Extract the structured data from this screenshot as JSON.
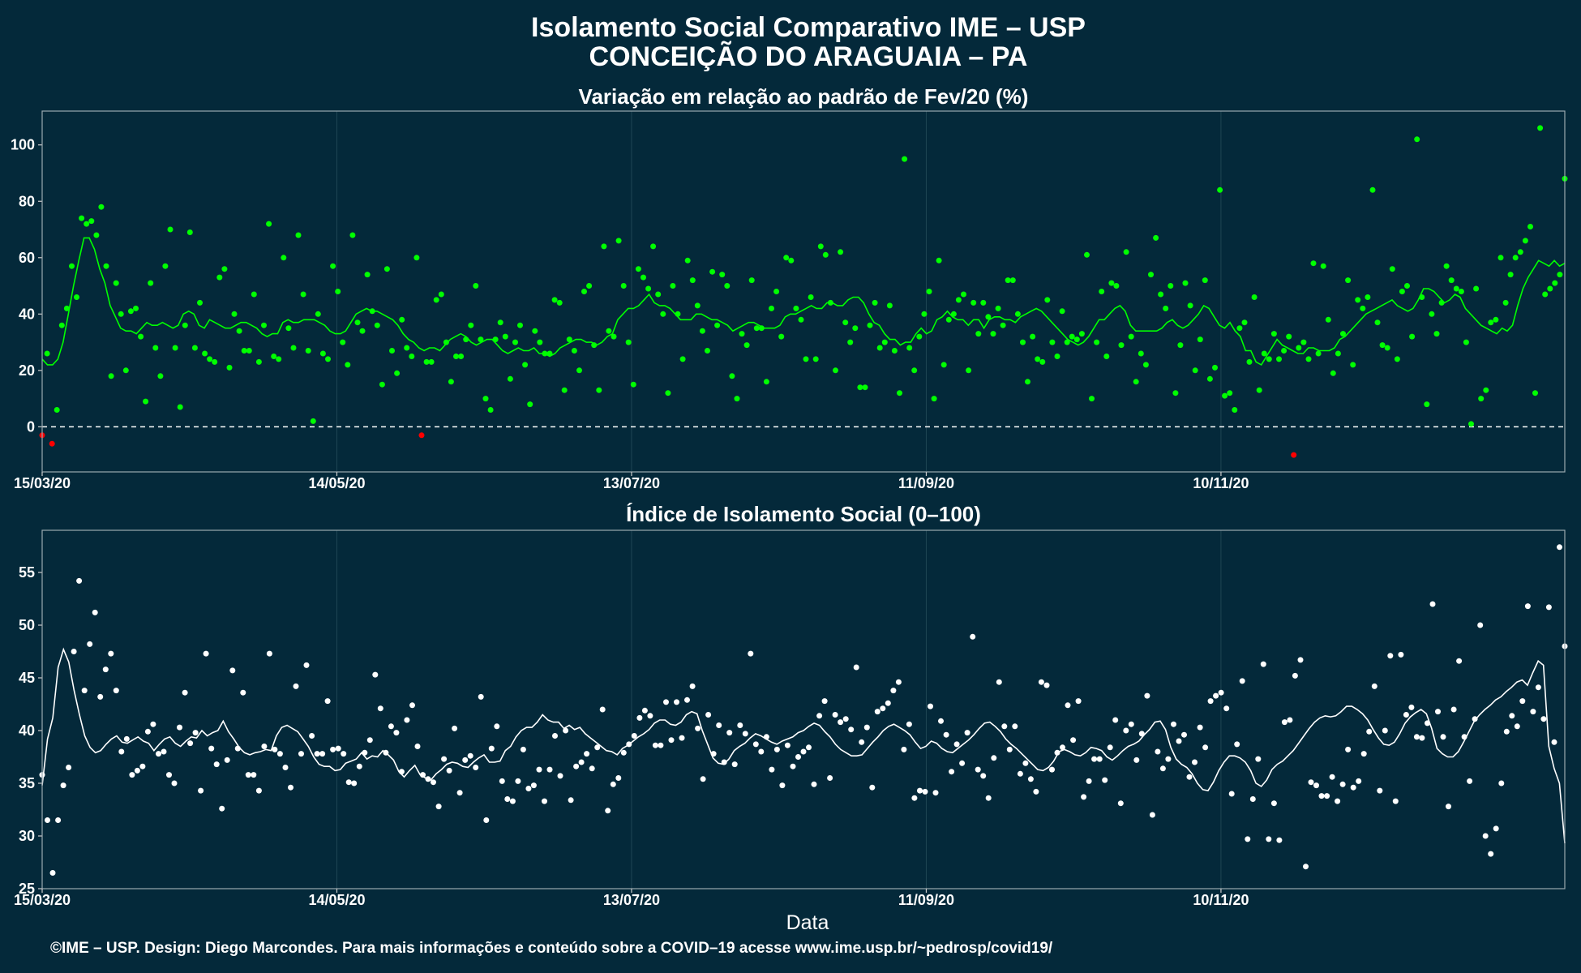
{
  "header": {
    "title": "Isolamento Social Comparativo IME – USP",
    "subtitle": "CONCEIÇÃO DO ARAGUAIA – PA"
  },
  "footer": {
    "credit": "©IME – USP. Design: Diego Marcondes. Para mais informações e conteúdo sobre a COVID–19 acesse www.ime.usp.br/~pedrosp/covid19/"
  },
  "colors": {
    "background": "#04293a",
    "positive_points": "#00ff00",
    "negative_points": "#ff0000",
    "index_points": "#ffffff",
    "grid": "#1f4654"
  },
  "chart_data": [
    {
      "type": "scatter",
      "title": "Variação em relação ao padrão de Fev/20 (%)",
      "xlabel": "",
      "ylabel": "",
      "x_start": "15/03/20",
      "x_end": "19/01/21",
      "x_tick_labels": [
        "15/03/20",
        "14/05/20",
        "13/07/20",
        "11/09/20",
        "10/11/20"
      ],
      "y_ticks": [
        0,
        20,
        40,
        60,
        80,
        100
      ],
      "ylim": [
        -16,
        112
      ],
      "reference_line": 0,
      "grid": true,
      "series": [
        {
          "values": [
            -3,
            26,
            -6,
            6,
            36,
            42,
            57,
            46,
            74,
            72,
            73,
            68,
            78,
            57,
            18,
            51,
            40,
            20,
            41,
            42,
            32,
            9,
            51,
            28,
            18,
            57,
            70,
            28,
            7,
            36,
            69,
            28,
            44,
            26,
            24,
            23,
            53,
            56,
            21,
            40,
            34,
            27,
            27,
            47,
            23,
            36,
            72,
            25,
            24,
            60,
            35,
            28,
            68,
            47,
            27,
            2,
            40,
            26,
            24,
            57,
            48,
            30,
            22,
            68,
            37,
            34,
            54,
            41,
            36,
            15,
            56,
            27,
            19,
            38,
            28,
            25,
            60,
            -3,
            23,
            23,
            45,
            47,
            30,
            16,
            25,
            25,
            31,
            36,
            50,
            31,
            10,
            6,
            31,
            37,
            32,
            17,
            30,
            36,
            22,
            8,
            34,
            30,
            26,
            26,
            45,
            44,
            13,
            31,
            27,
            20,
            48,
            50,
            29,
            13,
            64,
            34,
            32,
            66,
            50,
            30,
            15,
            56,
            53,
            49,
            64,
            47,
            40,
            12,
            50,
            40,
            24,
            59,
            52,
            43,
            34,
            27,
            55,
            36,
            54,
            50,
            18,
            10,
            33,
            29,
            52,
            35,
            35,
            16,
            42,
            48,
            32,
            60,
            59,
            42,
            38,
            24,
            46,
            24,
            64,
            61,
            44,
            20,
            62,
            37,
            30,
            35,
            14,
            14,
            36,
            44,
            28,
            30,
            43,
            27,
            12,
            95,
            28,
            20,
            32,
            40,
            48,
            10,
            59,
            22,
            38,
            40,
            45,
            47,
            20,
            44,
            33,
            44,
            39,
            33,
            42,
            36,
            52,
            52,
            40,
            30,
            16,
            32,
            24,
            23,
            45,
            30,
            25,
            41,
            30,
            32,
            31,
            33,
            61,
            10,
            30,
            48,
            25,
            51,
            50,
            29,
            62,
            32,
            16,
            26,
            22,
            54,
            67,
            47,
            42,
            50,
            12,
            29,
            51,
            43,
            20,
            31,
            52,
            17,
            21,
            84,
            11,
            12,
            6,
            35,
            37,
            23,
            46,
            13,
            26,
            24,
            33,
            24,
            27,
            32,
            -10,
            28,
            30,
            24,
            58,
            26,
            57,
            38,
            19,
            26,
            33,
            52,
            22,
            45,
            42,
            46,
            84,
            37,
            29,
            28,
            56,
            24,
            48,
            50,
            32,
            102,
            46,
            8,
            40,
            33,
            44,
            57,
            52,
            49,
            48,
            30,
            1,
            49,
            10,
            13,
            37,
            38,
            60,
            44,
            54,
            60,
            62,
            66,
            71,
            12,
            106,
            47,
            49,
            51,
            54,
            88
          ]
        }
      ],
      "moving_average": [
        24,
        22,
        22,
        24,
        30,
        40,
        50,
        59,
        67,
        67,
        63,
        56,
        51,
        43,
        39,
        35,
        34,
        34,
        33,
        35,
        37,
        36,
        36,
        37,
        36,
        35,
        36,
        40,
        41,
        40,
        36,
        35,
        38,
        37,
        36,
        35,
        35,
        36,
        37,
        37,
        36,
        35,
        33,
        32,
        33,
        33,
        37,
        38,
        37,
        37,
        38,
        38,
        38,
        37,
        36,
        34,
        33,
        33,
        34,
        37,
        40,
        41,
        42,
        41,
        41,
        40,
        39,
        38,
        36,
        33,
        31,
        30,
        28,
        27,
        28,
        28,
        27,
        29,
        31,
        32,
        33,
        32,
        30,
        29,
        30,
        31,
        31,
        29,
        27,
        26,
        27,
        28,
        27,
        27,
        28,
        26,
        26,
        25,
        26,
        28,
        29,
        30,
        31,
        31,
        30,
        30,
        29,
        30,
        32,
        33,
        38,
        40,
        42,
        42,
        43,
        45,
        47,
        44,
        43,
        43,
        42,
        40,
        38,
        38,
        38,
        40,
        40,
        39,
        38,
        38,
        37,
        36,
        34,
        35,
        36,
        37,
        37,
        36,
        35,
        35,
        35,
        36,
        39,
        40,
        40,
        41,
        42,
        43,
        42,
        42,
        44,
        44,
        43,
        43,
        45,
        46,
        46,
        44,
        40,
        37,
        36,
        33,
        31,
        31,
        29,
        30,
        30,
        33,
        35,
        33,
        34,
        38,
        39,
        41,
        39,
        38,
        38,
        36,
        38,
        38,
        35,
        38,
        39,
        39,
        38,
        38,
        37,
        39,
        40,
        41,
        42,
        41,
        39,
        37,
        35,
        33,
        31,
        30,
        29,
        30,
        32,
        35,
        38,
        38,
        40,
        42,
        43,
        41,
        36,
        34,
        34,
        34,
        34,
        34,
        35,
        37,
        38,
        36,
        35,
        36,
        38,
        40,
        43,
        42,
        39,
        36,
        35,
        37,
        34,
        32,
        27,
        27,
        23,
        22,
        25,
        28,
        31,
        29,
        28,
        27,
        26,
        26,
        28,
        28,
        27,
        27,
        27,
        28,
        31,
        32,
        34,
        36,
        38,
        40,
        41,
        42,
        43,
        44,
        45,
        43,
        42,
        41,
        42,
        45,
        49,
        49,
        48,
        46,
        44,
        45,
        47,
        46,
        42,
        40,
        38,
        36,
        35,
        34,
        33,
        35,
        34,
        36,
        43,
        49,
        53,
        56,
        59,
        58,
        57,
        59,
        57,
        58
      ]
    },
    {
      "type": "scatter",
      "title": "Índice de Isolamento Social (0–100)",
      "xlabel": "Data",
      "ylabel": "",
      "x_start": "15/03/20",
      "x_end": "19/01/21",
      "x_tick_labels": [
        "15/03/20",
        "14/05/20",
        "13/07/20",
        "11/09/20",
        "10/11/20"
      ],
      "y_ticks": [
        25,
        30,
        35,
        40,
        45,
        50,
        55
      ],
      "ylim": [
        25,
        59
      ],
      "grid": true,
      "series": [
        {
          "values": [
            35.8,
            31.5,
            26.5,
            31.5,
            34.8,
            36.5,
            47.5,
            54.2,
            43.8,
            48.2,
            51.2,
            43.2,
            45.8,
            47.3,
            43.8,
            38.0,
            39.2,
            35.8,
            36.2,
            36.6,
            39.9,
            40.6,
            37.8,
            38.0,
            35.8,
            35.0,
            40.3,
            43.6,
            38.8,
            39.8,
            34.3,
            47.3,
            38.3,
            36.8,
            32.6,
            37.2,
            45.7,
            38.3,
            43.6,
            35.8,
            35.8,
            34.3,
            38.5,
            47.3,
            38.2,
            37.8,
            36.5,
            34.6,
            44.2,
            37.8,
            46.2,
            39.5,
            37.8,
            37.8,
            42.8,
            38.2,
            38.3,
            37.8,
            35.1,
            35.0,
            36.6,
            37.9,
            39.1,
            45.3,
            42.1,
            37.9,
            40.4,
            39.8,
            36.1,
            41.0,
            42.4,
            38.5,
            35.8,
            35.4,
            35.1,
            32.8,
            37.3,
            36.2,
            40.2,
            34.1,
            37.2,
            37.6,
            36.5,
            43.2,
            31.5,
            38.3,
            40.4,
            35.2,
            33.5,
            33.3,
            35.2,
            38.2,
            34.5,
            34.8,
            36.3,
            33.3,
            36.3,
            39.5,
            35.7,
            40.0,
            33.4,
            36.6,
            37.0,
            37.8,
            36.4,
            38.4,
            42.0,
            32.4,
            34.9,
            35.5,
            37.9,
            38.7,
            39.5,
            41.2,
            41.9,
            41.4,
            38.6,
            38.6,
            42.7,
            39.1,
            42.7,
            39.3,
            42.9,
            44.2,
            40.2,
            35.4,
            41.5,
            37.8,
            40.5,
            37.0,
            39.8,
            36.8,
            40.5,
            39.7,
            47.3,
            38.7,
            38.0,
            39.4,
            36.3,
            38.2,
            34.8,
            38.6,
            36.6,
            37.5,
            38.0,
            38.4,
            34.9,
            41.4,
            42.8,
            35.5,
            41.5,
            40.8,
            41.1,
            40.1,
            46.0,
            38.9,
            40.3,
            34.6,
            41.8,
            42.1,
            42.6,
            43.8,
            44.6,
            38.2,
            40.6,
            33.6,
            34.3,
            34.2,
            42.3,
            34.1,
            40.9,
            39.6,
            36.1,
            38.7,
            36.9,
            39.8,
            48.9,
            36.3,
            35.7,
            33.6,
            37.4,
            44.6,
            40.4,
            38.2,
            40.4,
            35.9,
            36.9,
            35.4,
            34.2,
            44.6,
            44.3,
            36.3,
            37.9,
            38.4,
            42.4,
            39.1,
            42.8,
            33.7,
            35.2,
            37.3,
            37.3,
            35.3,
            38.4,
            41.0,
            33.1,
            40.0,
            40.6,
            37.2,
            39.7,
            43.3,
            32.0,
            38.0,
            36.4,
            37.3,
            40.6,
            39.0,
            39.6,
            35.6,
            37.0,
            40.3,
            38.4,
            42.8,
            43.3,
            43.6,
            42.1,
            34.0,
            38.7,
            44.7,
            29.7,
            33.5,
            37.3,
            46.3,
            29.7,
            33.1,
            29.6,
            40.8,
            41.0,
            45.2,
            46.7,
            27.1,
            35.1,
            34.8,
            33.8,
            33.8,
            35.6,
            33.3,
            34.9,
            38.2,
            34.6,
            35.2,
            37.8,
            39.9,
            44.2,
            34.3,
            40.0,
            47.1,
            33.3,
            47.2,
            41.5,
            42.2,
            39.4,
            39.3,
            40.7,
            52.0,
            41.8,
            39.4,
            32.8,
            42.0,
            46.6,
            39.4,
            35.2,
            41.1,
            50.0,
            30.0,
            28.3,
            30.7,
            35.0,
            39.9,
            41.4,
            40.4,
            42.8,
            51.8,
            41.8,
            44.1,
            41.1,
            51.7,
            38.9,
            57.4,
            48.0
          ]
        }
      ],
      "moving_average": [
        34.8,
        39.2,
        41.2,
        46.0,
        47.7,
        46.5,
        43.8,
        41.5,
        39.5,
        38.4,
        37.9,
        38.1,
        38.7,
        39.2,
        39.5,
        38.9,
        38.8,
        39.1,
        39.4,
        39.0,
        38.8,
        38.1,
        38.7,
        39.2,
        39.4,
        38.8,
        38.5,
        39.0,
        39.4,
        39.3,
        40.0,
        39.5,
        39.8,
        40.0,
        40.9,
        39.9,
        39.2,
        38.4,
        37.9,
        37.7,
        37.9,
        38.0,
        38.2,
        38.1,
        39.5,
        40.3,
        40.5,
        40.2,
        39.9,
        39.2,
        38.5,
        37.5,
        36.8,
        36.6,
        36.6,
        36.2,
        36.3,
        36.9,
        37.1,
        37.3,
        37.9,
        37.3,
        37.6,
        37.5,
        38.1,
        37.7,
        37.2,
        36.1,
        35.6,
        36.2,
        36.7,
        35.8,
        35.5,
        35.3,
        35.9,
        36.3,
        36.8,
        37.0,
        36.9,
        36.6,
        36.5,
        37.0,
        37.4,
        37.7,
        37.0,
        37.0,
        37.1,
        38.1,
        38.5,
        39.4,
        40.0,
        40.3,
        40.3,
        40.8,
        41.5,
        41.0,
        40.8,
        40.8,
        40.2,
        40.5,
        40.1,
        40.3,
        39.7,
        39.3,
        38.9,
        38.5,
        38.1,
        38.0,
        37.7,
        38.3,
        38.6,
        39.0,
        39.4,
        39.7,
        40.1,
        40.7,
        41.0,
        41.0,
        40.6,
        40.5,
        40.8,
        41.5,
        41.8,
        41.6,
        40.0,
        38.7,
        37.4,
        36.9,
        36.8,
        37.3,
        38.1,
        38.5,
        38.8,
        39.3,
        39.7,
        39.5,
        39.2,
        38.9,
        38.7,
        39.0,
        39.2,
        39.4,
        39.8,
        40.0,
        40.4,
        40.7,
        40.5,
        39.9,
        39.4,
        38.7,
        38.2,
        37.9,
        37.6,
        37.6,
        37.7,
        38.3,
        38.9,
        39.4,
        40.0,
        40.4,
        40.6,
        40.3,
        40.0,
        39.6,
        38.9,
        38.3,
        38.5,
        39.0,
        38.8,
        38.3,
        38.0,
        37.9,
        38.3,
        38.7,
        39.1,
        39.6,
        40.2,
        40.7,
        40.8,
        40.4,
        39.9,
        39.2,
        38.7,
        38.3,
        37.8,
        37.3,
        36.8,
        36.3,
        36.2,
        36.5,
        37.1,
        38.0,
        38.2,
        38.0,
        37.7,
        37.6,
        37.9,
        38.4,
        38.3,
        38.1,
        37.5,
        37.2,
        37.6,
        38.1,
        38.5,
        38.7,
        39.0,
        39.6,
        40.1,
        40.8,
        40.9,
        40.1,
        38.4,
        37.3,
        36.8,
        36.5,
        35.9,
        35.0,
        34.4,
        34.3,
        35.1,
        36.2,
        37.0,
        37.6,
        37.6,
        37.4,
        37.0,
        36.2,
        35.0,
        34.7,
        35.3,
        36.3,
        36.8,
        37.1,
        37.6,
        38.1,
        38.8,
        39.5,
        40.2,
        40.8,
        41.2,
        41.4,
        41.3,
        41.4,
        41.8,
        42.3,
        42.3,
        42.0,
        41.6,
        41.0,
        40.1,
        39.3,
        38.7,
        38.6,
        38.9,
        39.7,
        40.7,
        41.3,
        41.7,
        42.0,
        41.6,
        40.2,
        38.3,
        37.8,
        37.5,
        37.5,
        38.0,
        38.9,
        39.9,
        40.9,
        41.5,
        42.0,
        42.4,
        42.9,
        43.2,
        43.7,
        44.1,
        44.6,
        44.8,
        44.3,
        45.5,
        46.6,
        46.2,
        38.5,
        36.4,
        35.0,
        29.3
      ]
    }
  ]
}
